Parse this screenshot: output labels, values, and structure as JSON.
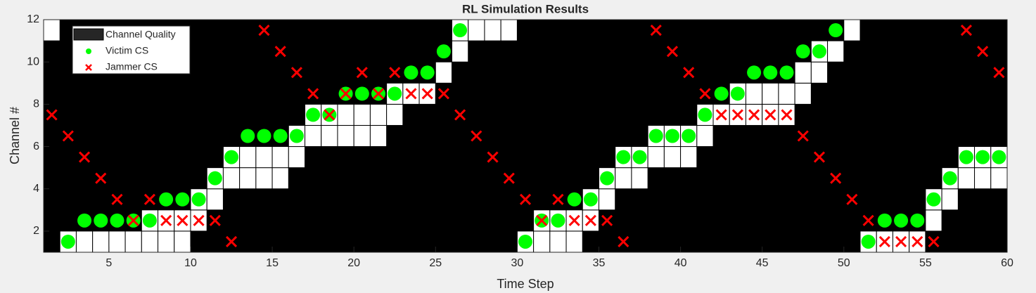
{
  "chart_data": {
    "type": "scatter",
    "title": "RL Simulation Results",
    "x_label": "Time Step",
    "y_label": "Channel #",
    "xlim": [
      1,
      60
    ],
    "ylim": [
      1,
      12
    ],
    "xticks": [
      5,
      10,
      15,
      20,
      25,
      30,
      35,
      40,
      45,
      50,
      55,
      60
    ],
    "yticks": [
      2,
      4,
      6,
      8,
      10,
      12
    ],
    "background": "#000000",
    "legend": "upper-left",
    "quality": {
      "name": "Channel Quality",
      "color": "#ffffff",
      "x": [
        1,
        2,
        3,
        4,
        5,
        6,
        7,
        8,
        9,
        10,
        11,
        12,
        13,
        14,
        15,
        16,
        17,
        18,
        19,
        20,
        21,
        22,
        23,
        24,
        25,
        26,
        27,
        28,
        29,
        30,
        31,
        32,
        33,
        34,
        35,
        36,
        37,
        38,
        39,
        40,
        41,
        42,
        43,
        44,
        45,
        46,
        47,
        48,
        49,
        50,
        51,
        52,
        53,
        54,
        55,
        56,
        57,
        58,
        59
      ],
      "channels": [
        [
          11
        ],
        [
          1
        ],
        [
          1
        ],
        [
          1
        ],
        [
          1
        ],
        [
          1
        ],
        [
          1,
          2
        ],
        [
          1,
          2
        ],
        [
          1,
          2
        ],
        [
          2,
          3
        ],
        [
          3,
          4
        ],
        [
          4,
          5
        ],
        [
          4,
          5
        ],
        [
          4,
          5
        ],
        [
          4,
          5
        ],
        [
          5,
          6
        ],
        [
          6,
          7
        ],
        [
          6,
          7
        ],
        [
          6,
          7
        ],
        [
          6,
          7
        ],
        [
          6,
          7
        ],
        [
          7,
          8
        ],
        [
          8
        ],
        [
          8
        ],
        [
          9
        ],
        [
          10,
          11
        ],
        [
          11
        ],
        [
          11
        ],
        [
          11
        ],
        [
          1
        ],
        [
          1,
          2
        ],
        [
          1,
          2
        ],
        [
          1,
          2
        ],
        [
          2,
          3
        ],
        [
          3,
          4
        ],
        [
          4,
          5
        ],
        [
          4,
          5
        ],
        [
          5,
          6
        ],
        [
          5,
          6
        ],
        [
          5,
          6
        ],
        [
          6,
          7
        ],
        [
          7
        ],
        [
          7,
          8
        ],
        [
          7,
          8
        ],
        [
          7,
          8
        ],
        [
          7,
          8
        ],
        [
          8,
          9
        ],
        [
          9,
          10
        ],
        [
          10
        ],
        [
          11
        ],
        [
          1
        ],
        [
          1
        ],
        [
          1
        ],
        [
          1
        ],
        [
          2,
          3
        ],
        [
          3,
          4
        ],
        [
          4,
          5
        ],
        [
          4,
          5
        ],
        [
          4,
          5
        ]
      ]
    },
    "x": [
      1.5,
      2.5,
      3.5,
      4.5,
      5.5,
      6.5,
      7.5,
      8.5,
      9.5,
      10.5,
      11.5,
      12.5,
      13.5,
      14.5,
      15.5,
      16.5,
      17.5,
      18.5,
      19.5,
      20.5,
      21.5,
      22.5,
      23.5,
      24.5,
      25.5,
      26.5,
      27.5,
      28.5,
      29.5,
      30.5,
      31.5,
      32.5,
      33.5,
      34.5,
      35.5,
      36.5,
      37.5,
      38.5,
      39.5,
      40.5,
      41.5,
      42.5,
      43.5,
      44.5,
      45.5,
      46.5,
      47.5,
      48.5,
      49.5,
      50.5,
      51.5,
      52.5,
      53.5,
      54.5,
      55.5,
      56.5,
      57.5,
      58.5,
      59.5
    ],
    "series": [
      {
        "name": "Victim CS",
        "color": "#00ff00",
        "marker": "o",
        "values": [
          null,
          1.5,
          2.5,
          2.5,
          2.5,
          2.5,
          2.5,
          3.5,
          3.5,
          3.5,
          4.5,
          5.5,
          6.5,
          6.5,
          6.5,
          6.5,
          7.5,
          7.5,
          8.5,
          8.5,
          8.5,
          8.5,
          9.5,
          9.5,
          10.5,
          11.5,
          null,
          null,
          null,
          1.5,
          2.5,
          2.5,
          3.5,
          3.5,
          4.5,
          5.5,
          5.5,
          6.5,
          6.5,
          6.5,
          7.5,
          8.5,
          8.5,
          9.5,
          9.5,
          9.5,
          10.5,
          10.5,
          11.5,
          null,
          1.5,
          2.5,
          2.5,
          2.5,
          3.5,
          4.5,
          5.5,
          5.5,
          5.5
        ]
      },
      {
        "name": "Jammer CS",
        "color": "#ff0000",
        "marker": "x",
        "values": [
          7.5,
          6.5,
          5.5,
          4.5,
          3.5,
          2.5,
          3.5,
          2.5,
          2.5,
          2.5,
          2.5,
          1.5,
          null,
          11.5,
          10.5,
          9.5,
          8.5,
          7.5,
          8.5,
          9.5,
          8.5,
          9.5,
          8.5,
          8.5,
          8.5,
          7.5,
          6.5,
          5.5,
          4.5,
          3.5,
          2.5,
          3.5,
          2.5,
          2.5,
          2.5,
          1.5,
          null,
          11.5,
          10.5,
          9.5,
          8.5,
          7.5,
          7.5,
          7.5,
          7.5,
          7.5,
          6.5,
          5.5,
          4.5,
          3.5,
          2.5,
          1.5,
          1.5,
          1.5,
          1.5,
          null,
          11.5,
          10.5,
          9.5
        ]
      }
    ]
  }
}
